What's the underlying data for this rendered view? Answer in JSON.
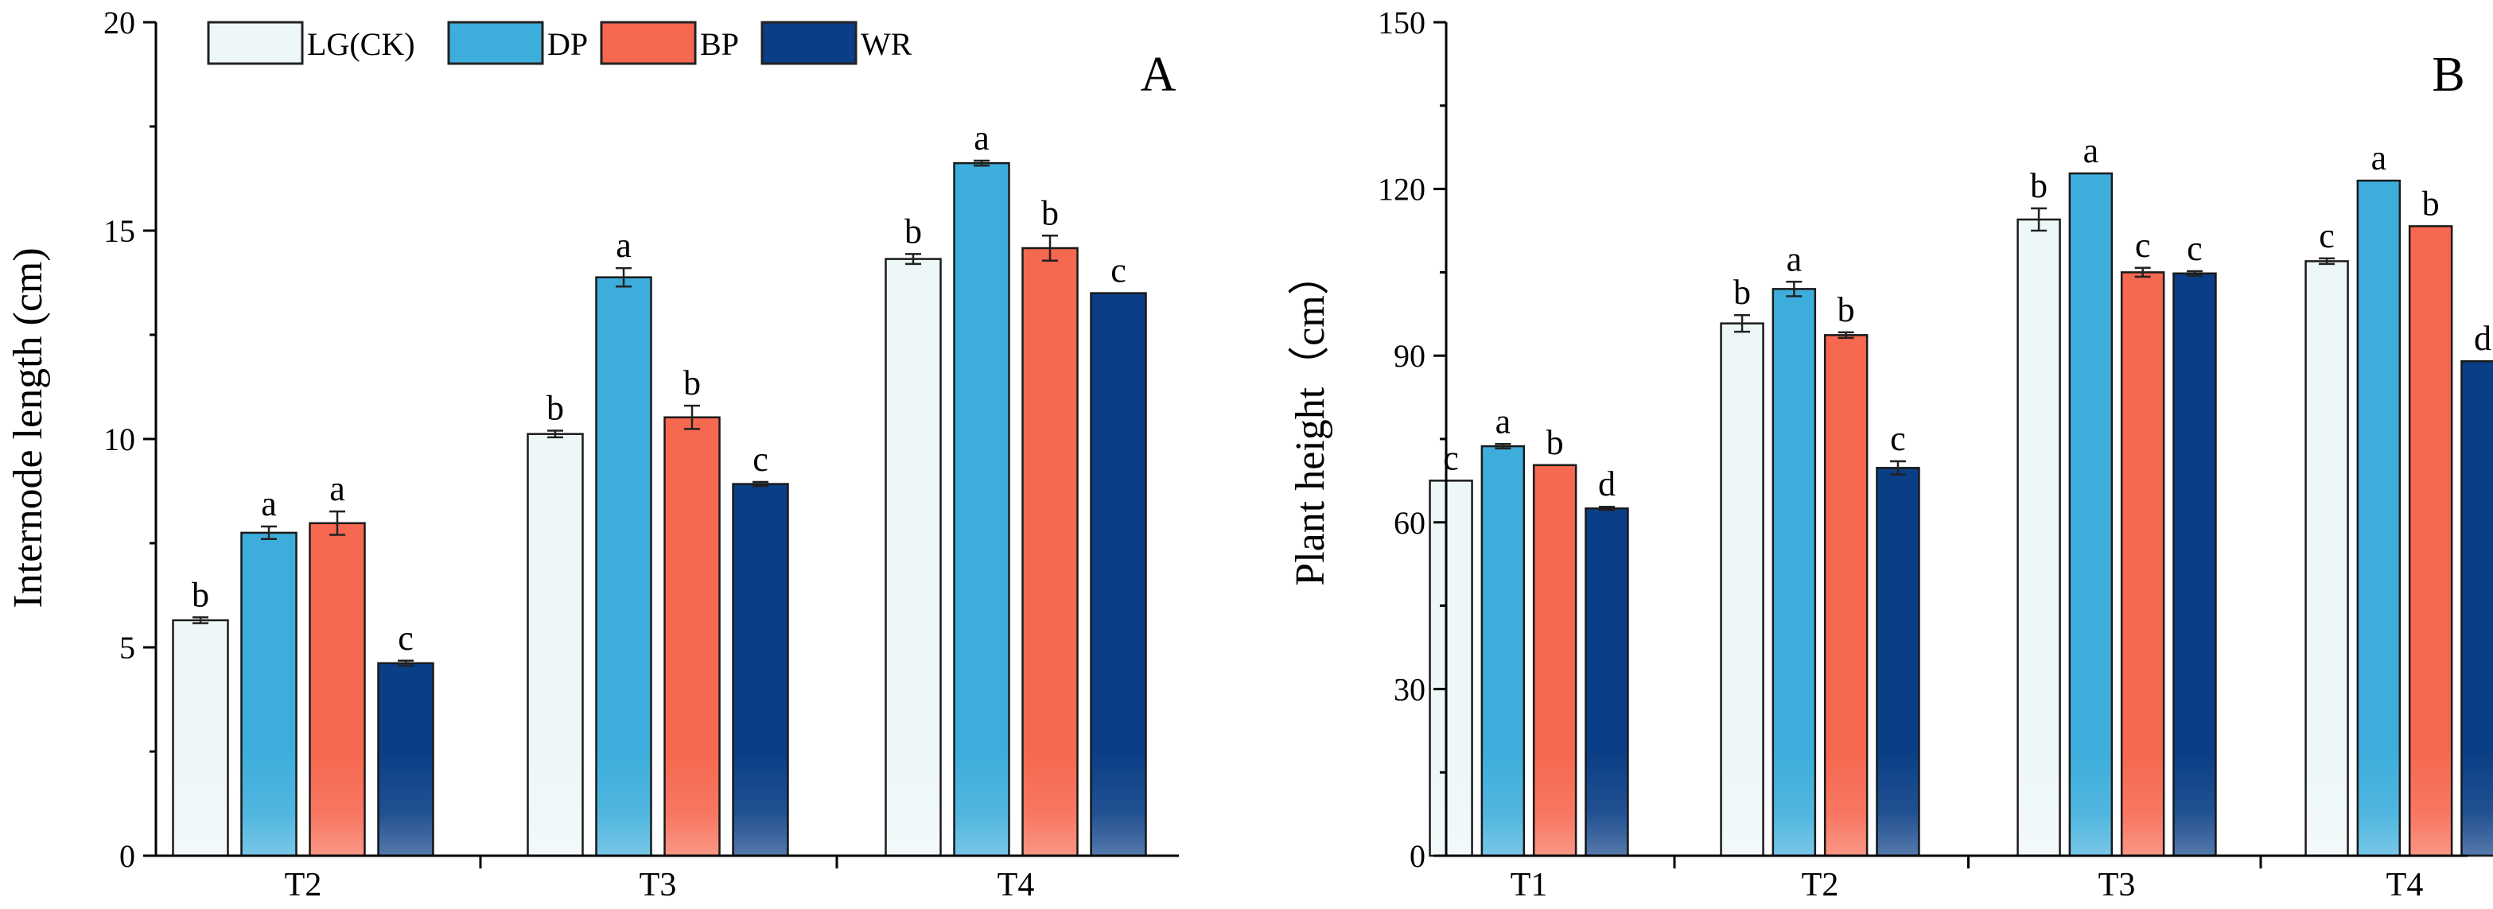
{
  "legend": [
    {
      "label": "LG(CK)",
      "color": "#EEF7F8"
    },
    {
      "label": "DP",
      "color": "#3DAEDC"
    },
    {
      "label": "BP",
      "color": "#F76850"
    },
    {
      "label": "WR",
      "color": "#0A3E86"
    }
  ],
  "chart_data": [
    {
      "type": "bar",
      "panel_label": "A",
      "ylabel": "Internode length (cm)",
      "xlabel": "",
      "categories": [
        "T2",
        "T3",
        "T4"
      ],
      "ylim": [
        0,
        20
      ],
      "yticks": [
        0,
        5,
        10,
        15,
        20
      ],
      "series": [
        {
          "name": "LG(CK)",
          "values": [
            5.65,
            10.12,
            14.32
          ],
          "errors": [
            0.07,
            0.08,
            0.12
          ],
          "letters": [
            "b",
            "b",
            "b"
          ]
        },
        {
          "name": "DP",
          "values": [
            7.75,
            13.88,
            16.62
          ],
          "errors": [
            0.15,
            0.22,
            0.06
          ],
          "letters": [
            "a",
            "a",
            "a"
          ]
        },
        {
          "name": "BP",
          "values": [
            7.98,
            10.52,
            14.58
          ],
          "errors": [
            0.28,
            0.28,
            0.3
          ],
          "letters": [
            "a",
            "b",
            "b"
          ]
        },
        {
          "name": "WR",
          "values": [
            4.62,
            8.92,
            13.5
          ],
          "errors": [
            0.06,
            0.05,
            0.0
          ],
          "letters": [
            "c",
            "c",
            "c"
          ]
        }
      ]
    },
    {
      "type": "bar",
      "panel_label": "B",
      "ylabel": "Plant height（cm）",
      "xlabel": "",
      "categories": [
        "T1",
        "T2",
        "T3",
        "T4"
      ],
      "ylim": [
        0,
        150
      ],
      "yticks": [
        0,
        30,
        60,
        90,
        120,
        150
      ],
      "series": [
        {
          "name": "LG(CK)",
          "values": [
            67.5,
            95.8,
            114.5,
            107.0
          ],
          "errors": [
            0.0,
            1.5,
            2.0,
            0.5
          ],
          "letters": [
            "c",
            "b",
            "b",
            "c"
          ]
        },
        {
          "name": "DP",
          "values": [
            73.7,
            102.0,
            122.8,
            121.5
          ],
          "errors": [
            0.4,
            1.3,
            0.0,
            0.0
          ],
          "letters": [
            "a",
            "a",
            "a",
            "a"
          ]
        },
        {
          "name": "BP",
          "values": [
            70.3,
            93.7,
            105.0,
            113.3
          ],
          "errors": [
            0.0,
            0.5,
            0.8,
            0.0
          ],
          "letters": [
            "b",
            "b",
            "c",
            "b"
          ]
        },
        {
          "name": "WR",
          "values": [
            62.5,
            69.8,
            104.8,
            89.0
          ],
          "errors": [
            0.3,
            1.2,
            0.4,
            0.0
          ],
          "letters": [
            "d",
            "c",
            "c",
            "d"
          ]
        }
      ]
    }
  ]
}
